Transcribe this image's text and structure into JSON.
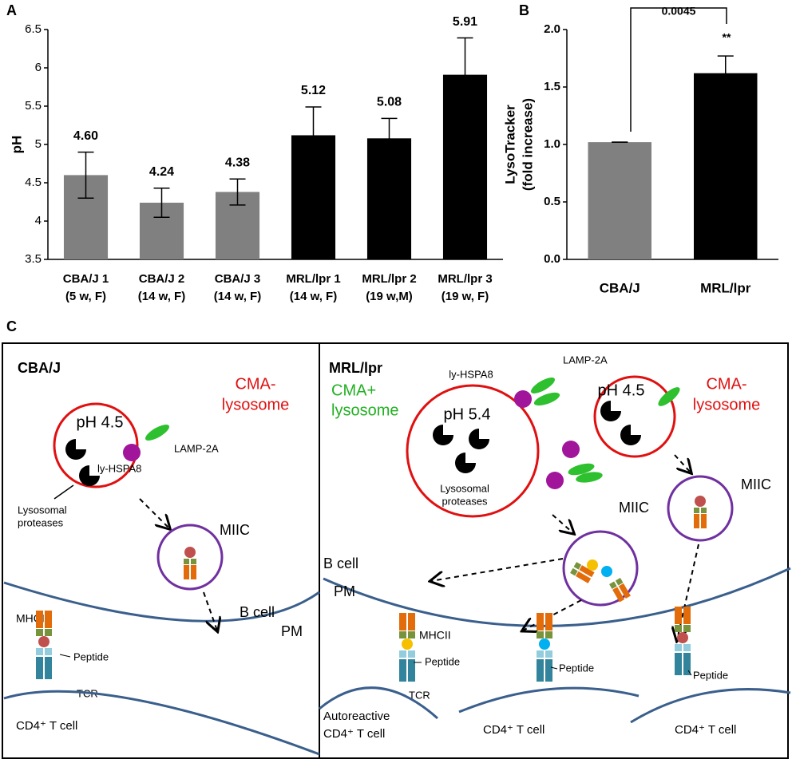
{
  "chart_data": [
    {
      "type": "bar",
      "panel": "A",
      "ylabel": "pH",
      "categories": [
        [
          "CBA/J 1",
          "(5 w, F)"
        ],
        [
          "CBA/J 2",
          "(14 w, F)"
        ],
        [
          "CBA/J 3",
          "(14 w, F)"
        ],
        [
          "MRL/lpr 1",
          "(14 w, F)"
        ],
        [
          "MRL/lpr 2",
          "(19 w,M)"
        ],
        [
          "MRL/lpr 3",
          "(19 w, F)"
        ]
      ],
      "values": [
        4.6,
        4.24,
        4.38,
        5.12,
        5.08,
        5.91
      ],
      "value_labels": [
        "4.60",
        "4.24",
        "4.38",
        "5.12",
        "5.08",
        "5.91"
      ],
      "errors": [
        0.3,
        0.19,
        0.17,
        0.37,
        0.26,
        0.48
      ],
      "colors": [
        "#808080",
        "#808080",
        "#808080",
        "#000000",
        "#000000",
        "#000000"
      ],
      "ylim": [
        3.5,
        6.5
      ],
      "yticks": [
        3.5,
        4,
        4.5,
        5,
        5.5,
        6,
        6.5
      ]
    },
    {
      "type": "bar",
      "panel": "B",
      "ylabel": [
        "LysoTracker",
        "(fold increase)"
      ],
      "categories": [
        "CBA/J",
        "MRL/lpr"
      ],
      "values": [
        1.02,
        1.62
      ],
      "errors": [
        0,
        0.15
      ],
      "colors": [
        "#808080",
        "#000000"
      ],
      "ylim": [
        0,
        2.0
      ],
      "yticks": [
        {
          "value": 0,
          "label": "0.0"
        },
        {
          "value": 0.5,
          "label": "0.5"
        },
        {
          "value": 1.0,
          "label": "1.0"
        },
        {
          "value": 1.5,
          "label": "1.5"
        },
        {
          "value": 2.0,
          "label": "2.0"
        }
      ],
      "annotations": [
        "0.0045",
        "**"
      ]
    }
  ],
  "diagram": {
    "label": "C",
    "left": {
      "title": "CBA/J",
      "cma": [
        "CMA-",
        "lysosome"
      ],
      "ph": "pH 4.5",
      "lamp": "LAMP-2A",
      "hspa": "ly-HSPA8",
      "proteases": [
        "Lysosomal",
        "proteases"
      ],
      "miic": "MIIC",
      "bcell": "B cell",
      "pm": "PM",
      "mhc": "MHCII",
      "peptide": "Peptide",
      "tcr": "TCR",
      "tcell": "CD4⁺ T cell"
    },
    "right": {
      "title": "MRL/lpr",
      "cmaplus": [
        "CMA+",
        "lysosome"
      ],
      "ph1": "pH 5.4",
      "hspa": "ly-HSPA8",
      "lamp": "LAMP-2A",
      "proteases": [
        "Lysosomal",
        "proteases"
      ],
      "ph2": "pH 4.5",
      "cma": [
        "CMA-",
        "lysosome"
      ],
      "miic1": "MIIC",
      "miic2": "MIIC",
      "bcell": "B cell",
      "pm": "PM",
      "mhc": "MHCII",
      "peptide1": "Peptide",
      "peptide2": "Peptide",
      "peptide3": "Peptide",
      "tcr": "TCR",
      "tcell1": [
        "Autoreactive",
        "CD4⁺ T cell"
      ],
      "tcell2": "CD4⁺ T cell",
      "tcell3": "CD4⁺ T cell"
    }
  }
}
